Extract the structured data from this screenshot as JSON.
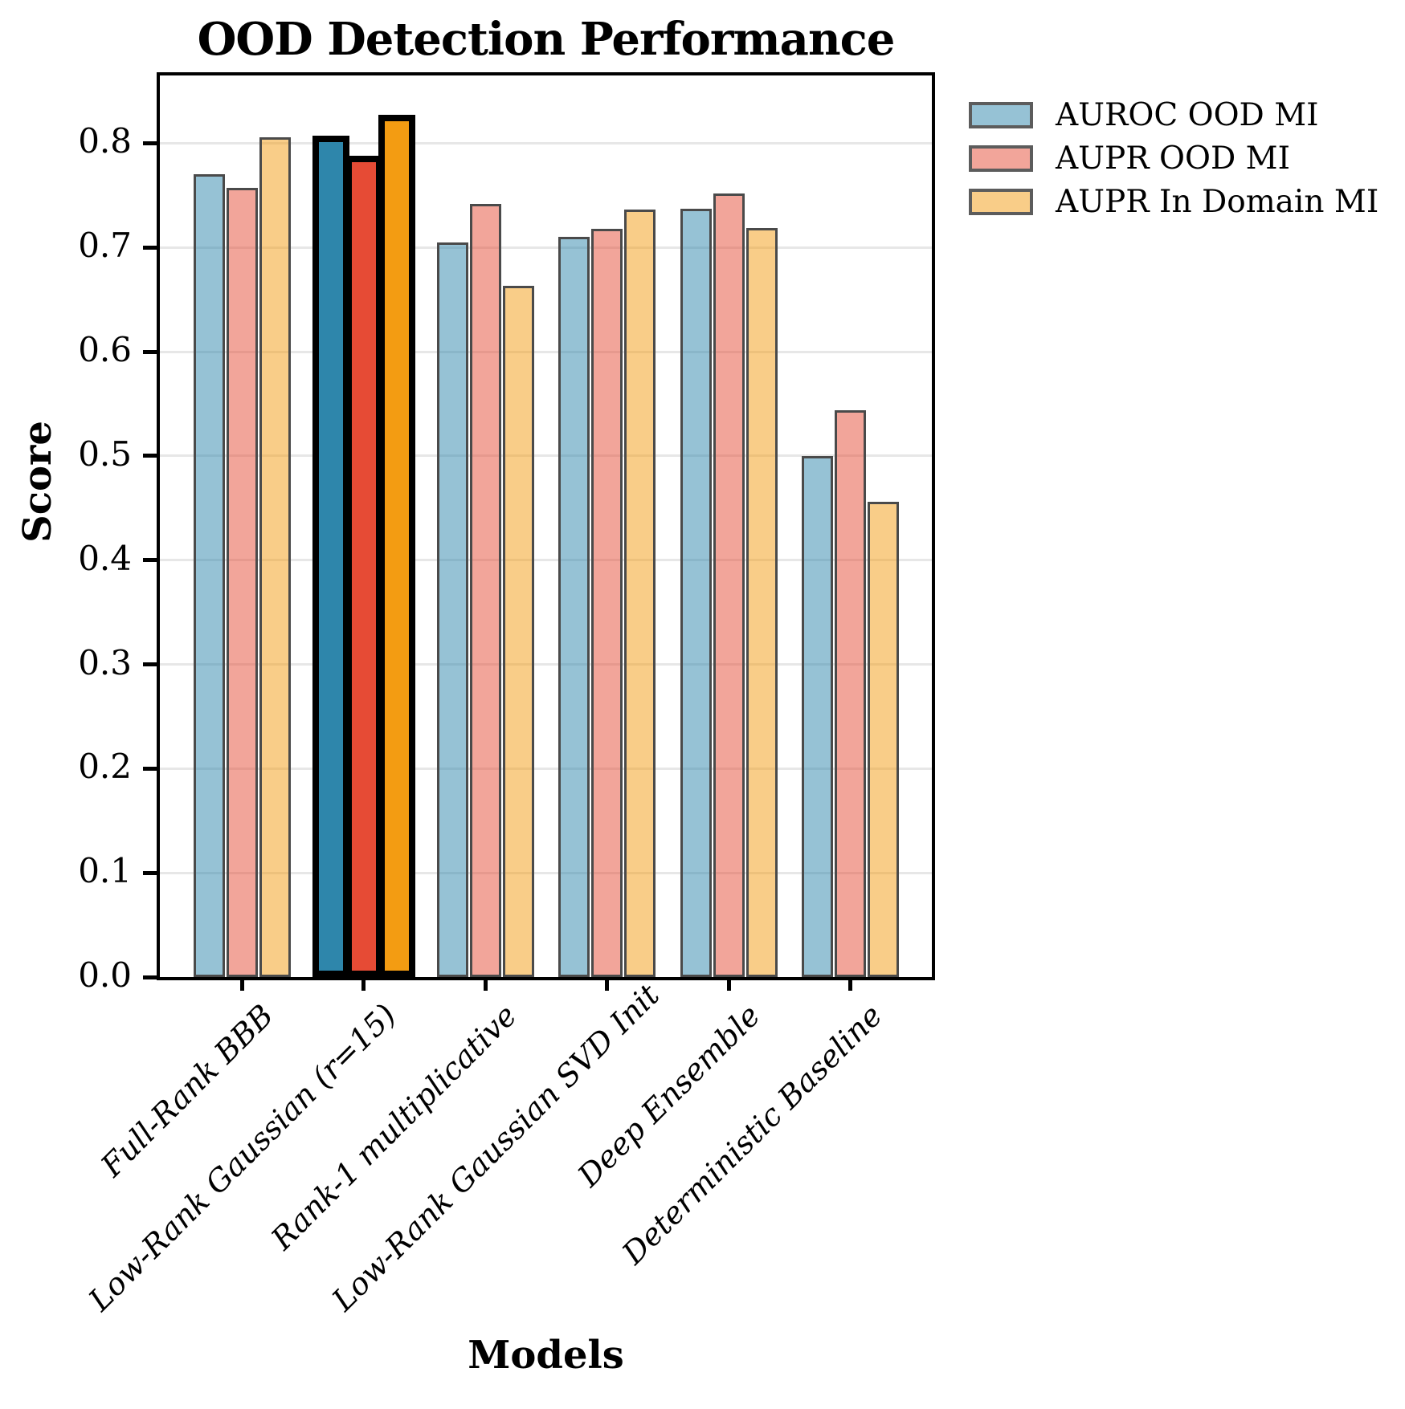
{
  "title": "OOD Detection Performance",
  "xlabel": "Models",
  "ylabel": "Score",
  "legend": {
    "items": [
      "AUROC OOD MI",
      "AUPR OOD MI",
      "AUPR In Domain MI"
    ]
  },
  "colors": {
    "series_base": [
      "#2E86AB",
      "#E64B35",
      "#F39C12"
    ],
    "light_alpha": 0.5,
    "light_edge": "#4a4a4a",
    "highlight_edge": "#000000",
    "gridline": "#e7e7e7",
    "spine": "#000000"
  },
  "chart_data": {
    "type": "bar",
    "title": "OOD Detection Performance",
    "xlabel": "Models",
    "ylabel": "Score",
    "categories": [
      "Full-Rank BBB",
      "Low-Rank Gaussian (r=15)",
      "Rank-1 multiplicative",
      "Low-Rank Gaussian SVD Init",
      "Deep Ensemble",
      "Deterministic Baseline"
    ],
    "series": [
      {
        "name": "AUROC OOD MI",
        "values": [
          0.77,
          0.803,
          0.705,
          0.71,
          0.737,
          0.5
        ]
      },
      {
        "name": "AUPR OOD MI",
        "values": [
          0.757,
          0.784,
          0.742,
          0.718,
          0.752,
          0.544
        ]
      },
      {
        "name": "AUPR In Domain MI",
        "values": [
          0.806,
          0.823,
          0.663,
          0.736,
          0.719,
          0.456
        ]
      }
    ],
    "highlighted_category": "Low-Rank Gaussian (r=15)",
    "ylim": [
      0.0,
      0.865
    ],
    "yticks": [
      0.0,
      0.1,
      0.2,
      0.3,
      0.4,
      0.5,
      0.6,
      0.7,
      0.8
    ],
    "grid": "horizontal",
    "legend_position": "outside-top-right"
  }
}
